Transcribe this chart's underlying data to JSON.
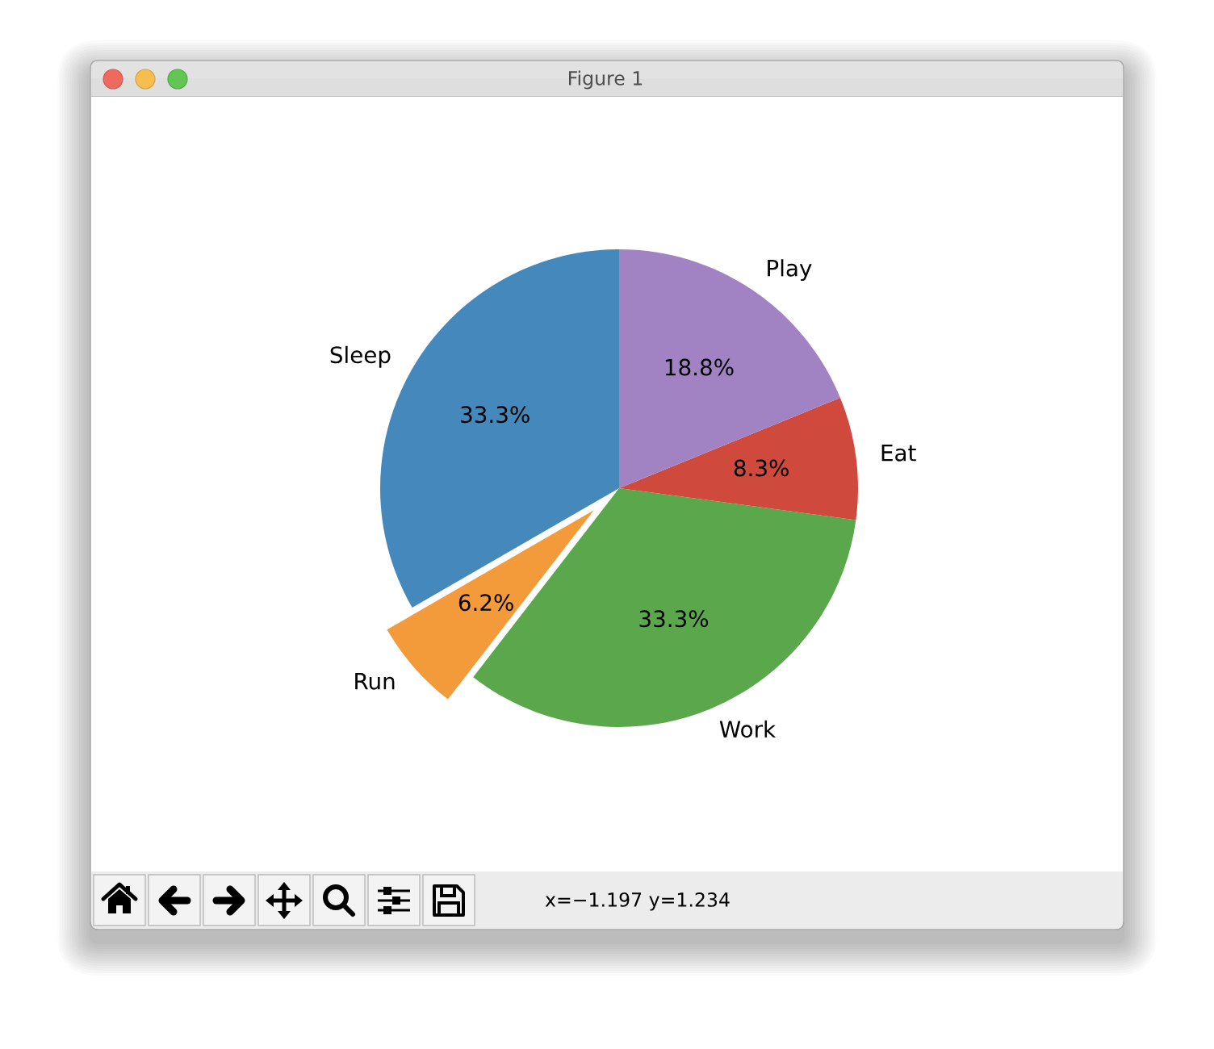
{
  "chart_data": {
    "type": "pie",
    "title": "Figure 1",
    "categories": [
      "Sleep",
      "Run",
      "Work",
      "Eat",
      "Play"
    ],
    "values": [
      33.3,
      6.2,
      33.3,
      8.3,
      18.8
    ],
    "value_labels": [
      "33.3%",
      "6.2%",
      "33.3%",
      "8.3%",
      "18.8%"
    ],
    "colors": [
      "#4589bc",
      "#f39a3b",
      "#5aa84b",
      "#cf4a3d",
      "#a182c3"
    ],
    "annotations": [
      "x=−1.197 y=1.234"
    ]
  }
}
